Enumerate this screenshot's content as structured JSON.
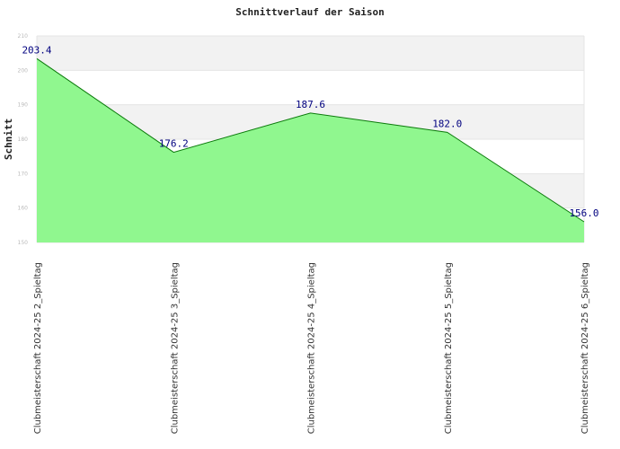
{
  "chart_data": {
    "type": "area",
    "title": "Schnittverlauf der Saison",
    "ylabel": "Schnitt",
    "xlabel": "",
    "categories": [
      "Clubmeisterschaft 2024-25  2_Spieltag",
      "Clubmeisterschaft 2024-25  3_Spieltag",
      "Clubmeisterschaft 2024-25  4_Spieltag",
      "Clubmeisterschaft 2024-25  5_Spieltag",
      "Clubmeisterschaft 2024-25  6_Spieltag"
    ],
    "values": [
      203.4,
      176.2,
      187.6,
      182.0,
      156.0
    ],
    "value_labels": [
      "203.4",
      "176.2",
      "187.6",
      "182.0",
      "156.0"
    ],
    "ylim": [
      150,
      210
    ],
    "yticks": [
      "150",
      "160",
      "170",
      "180",
      "190",
      "200",
      "210"
    ],
    "grid": true,
    "colors": {
      "fill": "#90f78f",
      "line": "#0b7a0b",
      "label": "#00007f",
      "band": "#f2f2f2",
      "grid": "#e4e4e4"
    }
  }
}
